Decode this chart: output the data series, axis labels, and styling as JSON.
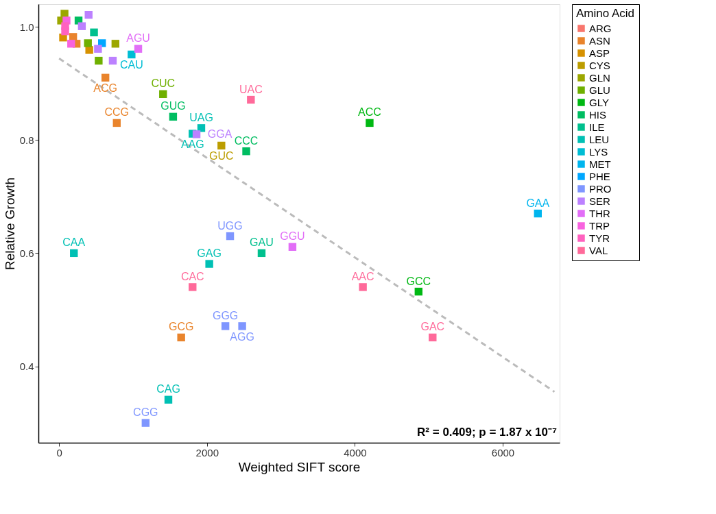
{
  "chart_data": {
    "type": "scatter",
    "xlabel": "Weighted SIFT score",
    "ylabel": "Relative Growth",
    "legend_title": "Amino Acid",
    "legend": "right",
    "grid": false,
    "marker": "square",
    "xlim": [
      -280,
      6770
    ],
    "ylim": [
      0.265,
      1.04
    ],
    "xticks": [
      0,
      2000,
      4000,
      6000
    ],
    "yticks": [
      0.4,
      0.6,
      0.8,
      {
        "value": 1.0,
        "label": "1.0"
      }
    ],
    "series": [
      {
        "name": "ARG",
        "color": "#F8766D"
      },
      {
        "name": "ASN",
        "color": "#E9842C",
        "x": [
          190,
          236,
          626,
          780,
          1651
        ],
        "values": [
          0.982,
          0.97,
          0.91,
          0.83,
          0.451
        ]
      },
      {
        "name": "ASP",
        "color": "#D69100",
        "x": [
          54,
          408
        ],
        "values": [
          0.981,
          0.959
        ]
      },
      {
        "name": "CYS",
        "color": "#BC9D00",
        "x": [
          2195
        ],
        "values": [
          0.79
        ]
      },
      {
        "name": "GLN",
        "color": "#9CA700",
        "x": [
          73,
          27,
          762
        ],
        "values": [
          1.023,
          1.011,
          0.97
        ]
      },
      {
        "name": "GLU",
        "color": "#6FB000",
        "x": [
          390,
          535,
          1406
        ],
        "values": [
          0.971,
          0.94,
          0.881
        ]
      },
      {
        "name": "GLY",
        "color": "#00B813",
        "x": [
          4200,
          4862
        ],
        "values": [
          0.83,
          0.532
        ]
      },
      {
        "name": "HIS",
        "color": "#00BD61",
        "x": [
          263,
          1542,
          2531
        ],
        "values": [
          1.011,
          0.841,
          0.78
        ]
      },
      {
        "name": "ILE",
        "color": "#00C08E",
        "x": [
          472,
          2739
        ],
        "values": [
          0.99,
          0.6
        ]
      },
      {
        "name": "LEU",
        "color": "#00C0B4",
        "x": [
          1923,
          1805,
          200,
          2031,
          1478
        ],
        "values": [
          0.821,
          0.811,
          0.6,
          0.581,
          0.341
        ]
      },
      {
        "name": "LYS",
        "color": "#00BDD4",
        "x": [
          980
        ],
        "values": [
          0.951
        ]
      },
      {
        "name": "MET",
        "color": "#00B5EE",
        "x": [
          6476
        ],
        "values": [
          0.67
        ]
      },
      {
        "name": "PHE",
        "color": "#00A7FF",
        "x": [
          580
        ],
        "values": [
          0.971
        ]
      },
      {
        "name": "PRO",
        "color": "#7F96FF",
        "x": [
          2313,
          2249,
          2476,
          1170
        ],
        "values": [
          0.63,
          0.471,
          0.471,
          0.3
        ]
      },
      {
        "name": "SER",
        "color": "#BC81FF",
        "x": [
          399,
          308,
          526,
          726,
          1859
        ],
        "values": [
          1.021,
          1.001,
          0.961,
          0.94,
          0.81
        ]
      },
      {
        "name": "THR",
        "color": "#E26EF7",
        "x": [
          1070,
          3156
        ],
        "values": [
          0.961,
          0.611
        ]
      },
      {
        "name": "TRP",
        "color": "#F863DF",
        "x": [
          100,
          163
        ],
        "values": [
          1.011,
          0.97
        ]
      },
      {
        "name": "TYR",
        "color": "#FF62BF",
        "x": [
          82,
          82
        ],
        "values": [
          1.001,
          0.992
        ]
      },
      {
        "name": "VAL",
        "color": "#FF6A9A",
        "x": [
          2594,
          4109,
          5052,
          1805
        ],
        "values": [
          0.871,
          0.54,
          0.451,
          0.54
        ]
      },
      {
        "type": "line",
        "color": "#BBBBBB",
        "line_style": "dashed",
        "marker": "none",
        "x": [
          0,
          6700
        ],
        "values": [
          0.944,
          0.355
        ]
      }
    ],
    "annotations": [
      {
        "text": "AGU",
        "x": 1070,
        "y": 0.961
      },
      {
        "text": "CAU",
        "x": 980,
        "y": 0.951
      },
      {
        "text": "ACG",
        "x": 626,
        "y": 0.91
      },
      {
        "text": "CUC",
        "x": 1406,
        "y": 0.881
      },
      {
        "text": "GUG",
        "x": 1542,
        "y": 0.841
      },
      {
        "text": "CCG",
        "x": 780,
        "y": 0.83
      },
      {
        "text": "UAC",
        "x": 2594,
        "y": 0.871
      },
      {
        "text": "UAG",
        "x": 1923,
        "y": 0.821
      },
      {
        "text": "AAG",
        "x": 1805,
        "y": 0.811
      },
      {
        "text": "GGA",
        "x": 1859,
        "y": 0.81
      },
      {
        "text": "GUC",
        "x": 2195,
        "y": 0.79
      },
      {
        "text": "CCC",
        "x": 2531,
        "y": 0.78
      },
      {
        "text": "ACC",
        "x": 4200,
        "y": 0.83
      },
      {
        "text": "GAA",
        "x": 6476,
        "y": 0.67
      },
      {
        "text": "UGG",
        "x": 2313,
        "y": 0.63
      },
      {
        "text": "GGU",
        "x": 3156,
        "y": 0.611
      },
      {
        "text": "CAA",
        "x": 200,
        "y": 0.6
      },
      {
        "text": "GAG",
        "x": 2031,
        "y": 0.581
      },
      {
        "text": "GAU",
        "x": 2739,
        "y": 0.6
      },
      {
        "text": "AAC",
        "x": 4109,
        "y": 0.54
      },
      {
        "text": "GCC",
        "x": 4862,
        "y": 0.532
      },
      {
        "text": "CAC",
        "x": 1805,
        "y": 0.54
      },
      {
        "text": "GGG",
        "x": 2249,
        "y": 0.471
      },
      {
        "text": "AGG",
        "x": 2476,
        "y": 0.471
      },
      {
        "text": "GAC",
        "x": 5052,
        "y": 0.451
      },
      {
        "text": "GCG",
        "x": 1651,
        "y": 0.451
      },
      {
        "text": "CAG",
        "x": 1478,
        "y": 0.341
      },
      {
        "text": "CGG",
        "x": 1170,
        "y": 0.3
      },
      "R² = 0.409; p = 1.87 x 10⁻⁷"
    ]
  }
}
